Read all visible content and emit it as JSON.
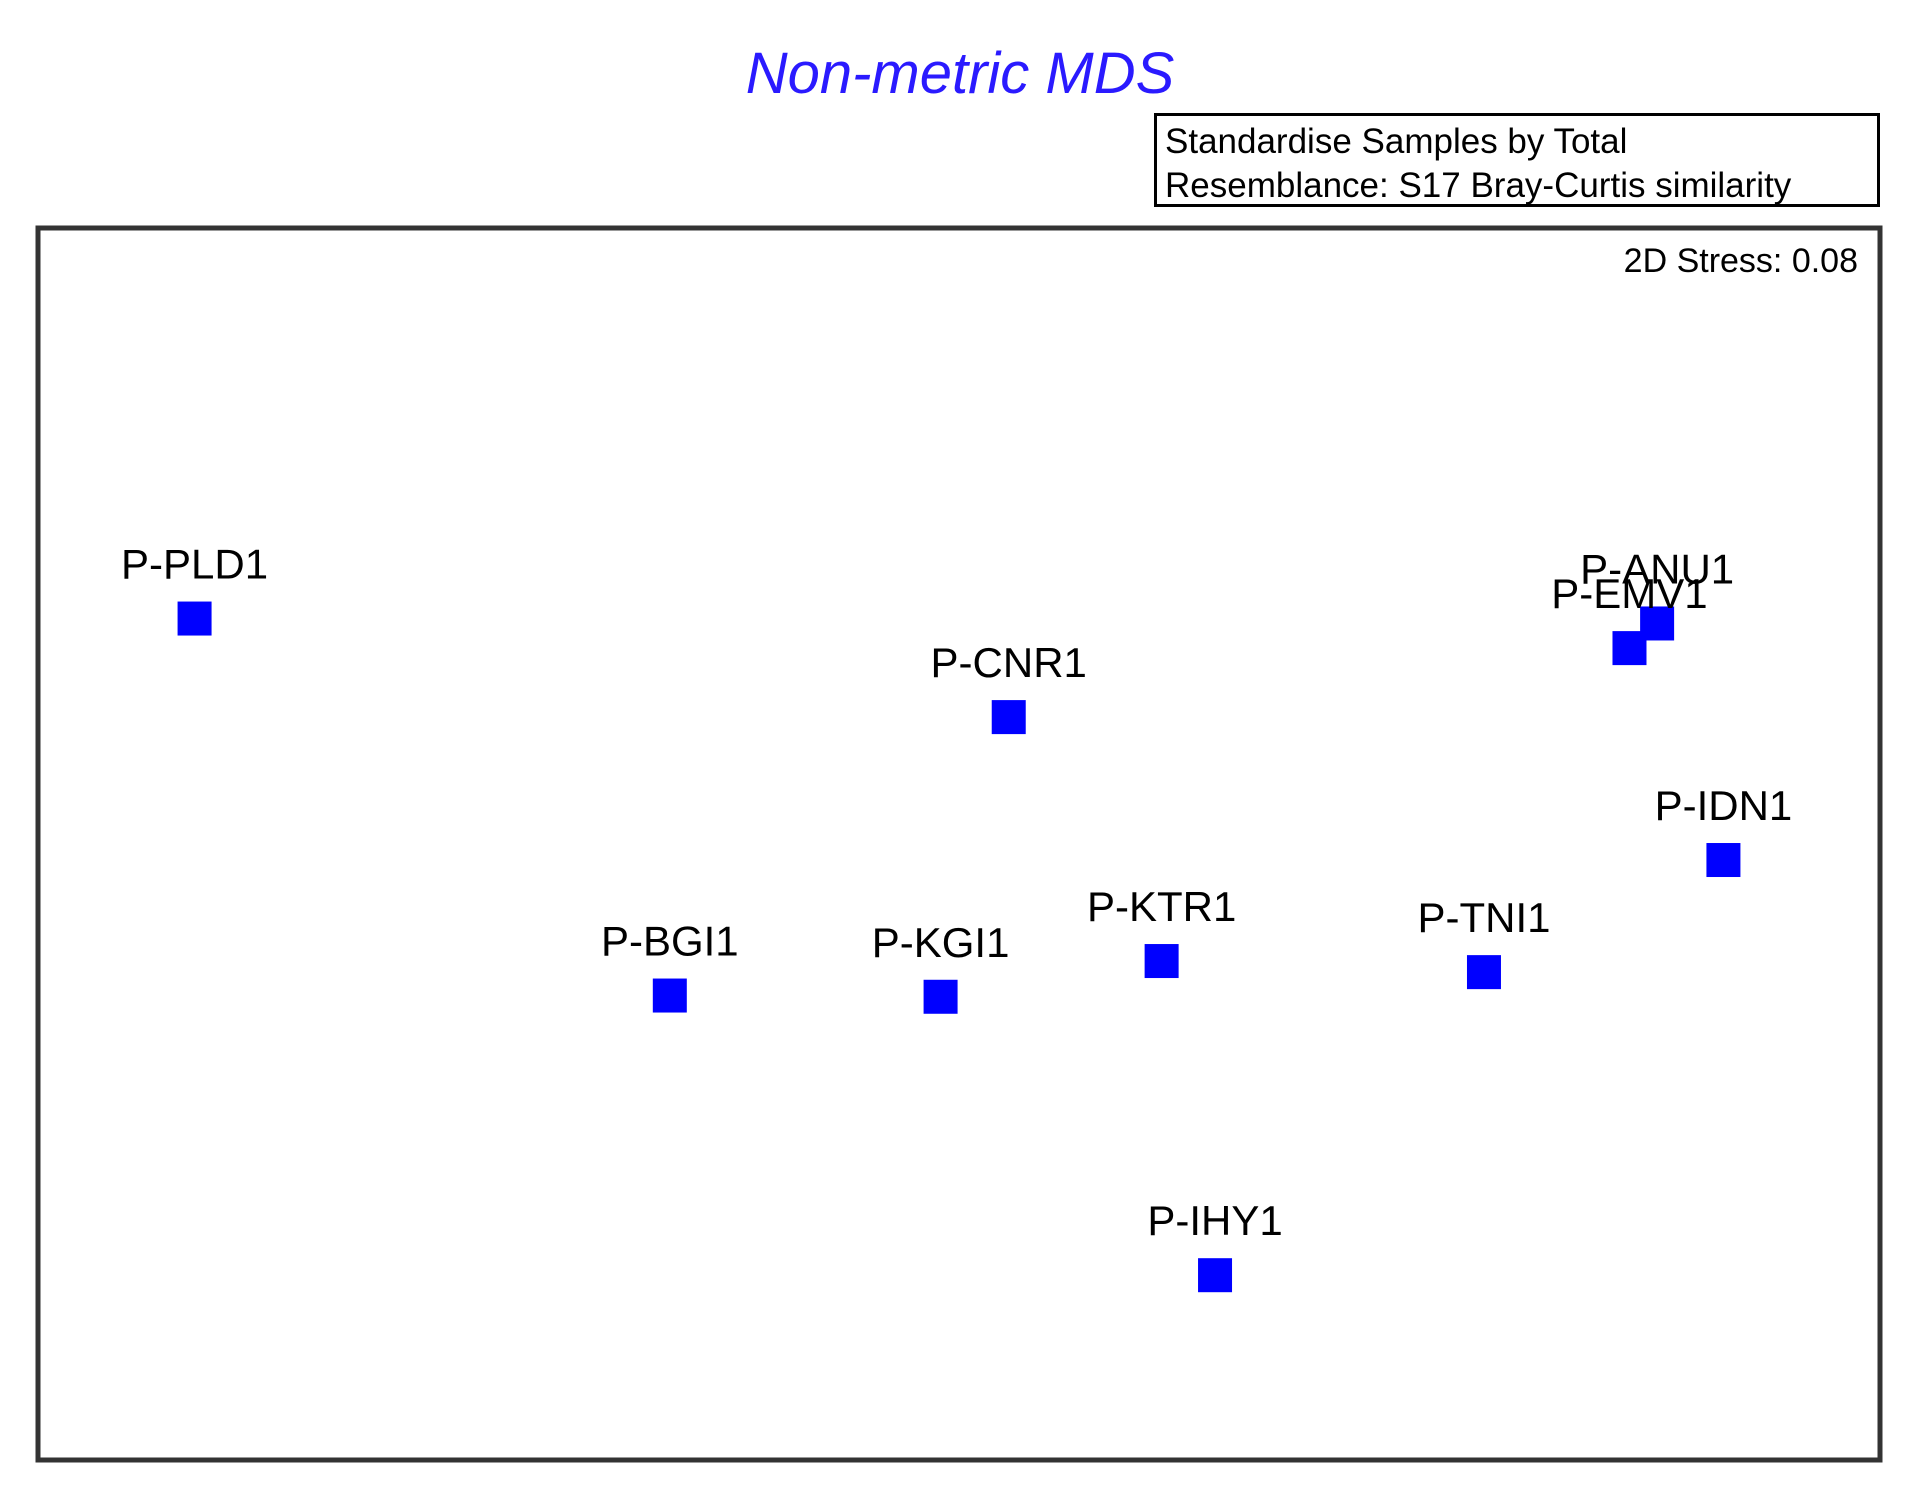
{
  "chart_data": {
    "type": "scatter",
    "title": "Non-metric MDS",
    "info_box": [
      "Standardise Samples by Total",
      "Resemblance: S17 Bray-Curtis similarity"
    ],
    "stress_label": "2D Stress: 0.08",
    "xlabel": "",
    "ylabel": "",
    "axes_ticks_shown": false,
    "grid": false,
    "xlim": [
      0,
      1
    ],
    "ylim": [
      0,
      1
    ],
    "marker": "square",
    "marker_color": "#0000ff",
    "points": [
      {
        "label": "P-PLD1",
        "x": 0.085,
        "y": 0.683
      },
      {
        "label": "P-CNR1",
        "x": 0.527,
        "y": 0.603
      },
      {
        "label": "P-ANU1",
        "x": 0.879,
        "y": 0.679
      },
      {
        "label": "P-EMV1",
        "x": 0.864,
        "y": 0.659
      },
      {
        "label": "P-IDN1",
        "x": 0.915,
        "y": 0.487
      },
      {
        "label": "P-BGI1",
        "x": 0.343,
        "y": 0.377
      },
      {
        "label": "P-KGI1",
        "x": 0.49,
        "y": 0.376
      },
      {
        "label": "P-KTR1",
        "x": 0.61,
        "y": 0.405
      },
      {
        "label": "P-TNI1",
        "x": 0.785,
        "y": 0.396
      },
      {
        "label": "P-IHY1",
        "x": 0.639,
        "y": 0.15
      }
    ]
  }
}
